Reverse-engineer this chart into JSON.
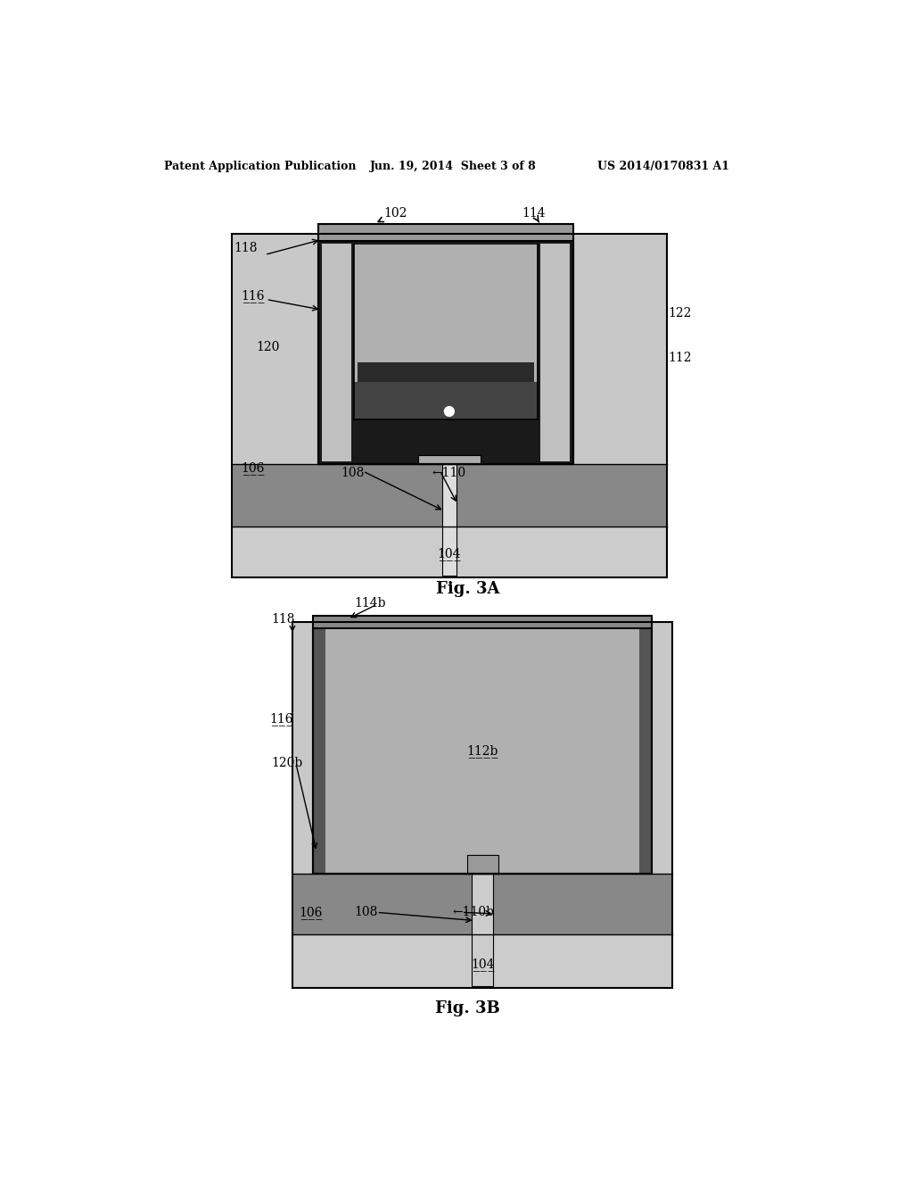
{
  "bg_color": "#ffffff",
  "header_left": "Patent Application Publication",
  "header_mid": "Jun. 19, 2014  Sheet 3 of 8",
  "header_right": "US 2014/0170831 A1",
  "fig3a_caption": "Fig. 3A",
  "fig3b_caption": "Fig. 3B",
  "colors": {
    "white": "#ffffff",
    "light_gray": "#cccccc",
    "medium_gray": "#aaaaaa",
    "dark_gray": "#888888",
    "darker_gray": "#555555",
    "very_dark": "#222222",
    "black": "#111111",
    "wall_gray": "#bbbbbb",
    "top_gray": "#999999"
  }
}
